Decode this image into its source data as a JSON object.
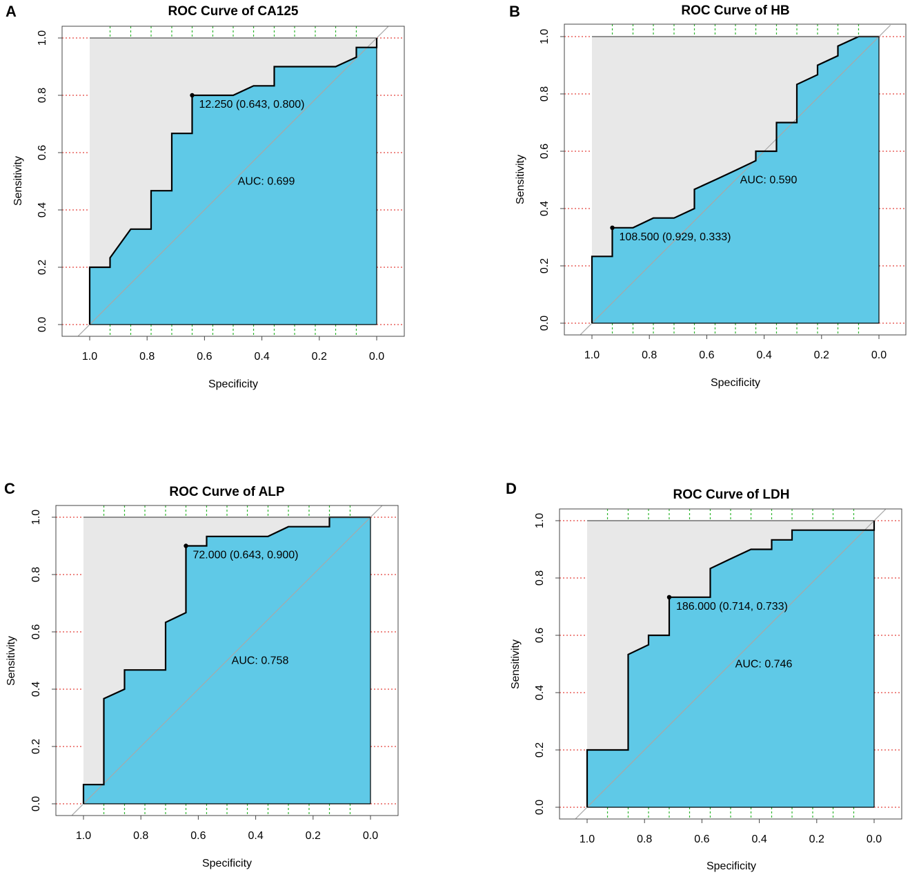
{
  "colors": {
    "fill": "#5FC9E7",
    "background": "#E8E8E8",
    "curve": "#000000",
    "diagonal": "#A8A8A8",
    "grid_y": "#E4403A",
    "grid_x": "#2DB52D",
    "axis": "#444444"
  },
  "chart_data": [
    {
      "type": "line",
      "panel_label": "A",
      "title": "ROC Curve of CA125",
      "xlabel": "Specificity",
      "ylabel": "Sensitivity",
      "xlim": [
        1.0,
        0.0
      ],
      "ylim": [
        0.0,
        1.0
      ],
      "x_ticks": [
        "1.0",
        "0.8",
        "0.6",
        "0.4",
        "0.2",
        "0.0"
      ],
      "y_ticks": [
        "0.0",
        "0.2",
        "0.4",
        "0.6",
        "0.8",
        "1.0"
      ],
      "grid_x_values": [
        0.929,
        0.857,
        0.786,
        0.714,
        0.643,
        0.571,
        0.5,
        0.429,
        0.357,
        0.286,
        0.214,
        0.143,
        0.071
      ],
      "grid_y_values": [
        0.0,
        0.2,
        0.4,
        0.6,
        0.8,
        1.0
      ],
      "curve": [
        [
          1.0,
          0.0
        ],
        [
          1.0,
          0.2
        ],
        [
          0.929,
          0.2
        ],
        [
          0.929,
          0.233
        ],
        [
          0.857,
          0.333
        ],
        [
          0.786,
          0.333
        ],
        [
          0.786,
          0.467
        ],
        [
          0.714,
          0.467
        ],
        [
          0.714,
          0.667
        ],
        [
          0.643,
          0.667
        ],
        [
          0.643,
          0.8
        ],
        [
          0.5,
          0.8
        ],
        [
          0.429,
          0.833
        ],
        [
          0.357,
          0.833
        ],
        [
          0.357,
          0.9
        ],
        [
          0.143,
          0.9
        ],
        [
          0.071,
          0.933
        ],
        [
          0.071,
          0.967
        ],
        [
          0.0,
          0.967
        ],
        [
          0.0,
          1.0
        ]
      ],
      "best_point": {
        "x": 0.643,
        "y": 0.8
      },
      "best_point_label": "12.250 (0.643, 0.800)",
      "auc": 0.699,
      "auc_label": "AUC: 0.699"
    },
    {
      "type": "line",
      "panel_label": "B",
      "title": "ROC Curve of HB",
      "xlabel": "Specificity",
      "ylabel": "Sensitivity",
      "xlim": [
        1.0,
        0.0
      ],
      "ylim": [
        0.0,
        1.0
      ],
      "x_ticks": [
        "1.0",
        "0.8",
        "0.6",
        "0.4",
        "0.2",
        "0.0"
      ],
      "y_ticks": [
        "0.0",
        "0.2",
        "0.4",
        "0.6",
        "0.8",
        "1.0"
      ],
      "grid_x_values": [
        0.929,
        0.857,
        0.786,
        0.714,
        0.643,
        0.571,
        0.5,
        0.429,
        0.357,
        0.286,
        0.214,
        0.143,
        0.071
      ],
      "grid_y_values": [
        0.0,
        0.2,
        0.4,
        0.6,
        0.8,
        1.0
      ],
      "curve": [
        [
          1.0,
          0.0
        ],
        [
          1.0,
          0.233
        ],
        [
          0.929,
          0.233
        ],
        [
          0.929,
          0.333
        ],
        [
          0.857,
          0.333
        ],
        [
          0.786,
          0.367
        ],
        [
          0.714,
          0.367
        ],
        [
          0.643,
          0.4
        ],
        [
          0.643,
          0.467
        ],
        [
          0.571,
          0.5
        ],
        [
          0.5,
          0.533
        ],
        [
          0.429,
          0.567
        ],
        [
          0.429,
          0.6
        ],
        [
          0.357,
          0.6
        ],
        [
          0.357,
          0.7
        ],
        [
          0.286,
          0.7
        ],
        [
          0.286,
          0.833
        ],
        [
          0.214,
          0.867
        ],
        [
          0.214,
          0.9
        ],
        [
          0.143,
          0.933
        ],
        [
          0.143,
          0.967
        ],
        [
          0.071,
          1.0
        ],
        [
          0.0,
          1.0
        ]
      ],
      "best_point": {
        "x": 0.929,
        "y": 0.333
      },
      "best_point_label": "108.500 (0.929, 0.333)",
      "auc": 0.59,
      "auc_label": "AUC: 0.590"
    },
    {
      "type": "line",
      "panel_label": "C",
      "title": "ROC Curve of ALP",
      "xlabel": "Specificity",
      "ylabel": "Sensitivity",
      "xlim": [
        1.0,
        0.0
      ],
      "ylim": [
        0.0,
        1.0
      ],
      "x_ticks": [
        "1.0",
        "0.8",
        "0.6",
        "0.4",
        "0.2",
        "0.0"
      ],
      "y_ticks": [
        "0.0",
        "0.2",
        "0.4",
        "0.6",
        "0.8",
        "1.0"
      ],
      "grid_x_values": [
        0.929,
        0.857,
        0.786,
        0.714,
        0.643,
        0.571,
        0.5,
        0.429,
        0.357,
        0.286,
        0.214,
        0.143,
        0.071
      ],
      "grid_y_values": [
        0.0,
        0.2,
        0.4,
        0.6,
        0.8,
        1.0
      ],
      "curve": [
        [
          1.0,
          0.0
        ],
        [
          1.0,
          0.067
        ],
        [
          0.929,
          0.067
        ],
        [
          0.929,
          0.367
        ],
        [
          0.857,
          0.4
        ],
        [
          0.857,
          0.467
        ],
        [
          0.714,
          0.467
        ],
        [
          0.714,
          0.633
        ],
        [
          0.643,
          0.667
        ],
        [
          0.643,
          0.9
        ],
        [
          0.571,
          0.9
        ],
        [
          0.571,
          0.933
        ],
        [
          0.357,
          0.933
        ],
        [
          0.286,
          0.967
        ],
        [
          0.143,
          0.967
        ],
        [
          0.143,
          1.0
        ],
        [
          0.0,
          1.0
        ]
      ],
      "best_point": {
        "x": 0.643,
        "y": 0.9
      },
      "best_point_label": "72.000 (0.643, 0.900)",
      "auc": 0.758,
      "auc_label": "AUC: 0.758"
    },
    {
      "type": "line",
      "panel_label": "D",
      "title": "ROC Curve of LDH",
      "xlabel": "Specificity",
      "ylabel": "Sensitivity",
      "xlim": [
        1.0,
        0.0
      ],
      "ylim": [
        0.0,
        1.0
      ],
      "x_ticks": [
        "1.0",
        "0.8",
        "0.6",
        "0.4",
        "0.2",
        "0.0"
      ],
      "y_ticks": [
        "0.0",
        "0.2",
        "0.4",
        "0.6",
        "0.8",
        "1.0"
      ],
      "grid_x_values": [
        0.929,
        0.857,
        0.786,
        0.714,
        0.643,
        0.571,
        0.5,
        0.429,
        0.357,
        0.286,
        0.214,
        0.143,
        0.071
      ],
      "grid_y_values": [
        0.0,
        0.2,
        0.4,
        0.6,
        0.8,
        1.0
      ],
      "curve": [
        [
          1.0,
          0.0
        ],
        [
          1.0,
          0.2
        ],
        [
          0.857,
          0.2
        ],
        [
          0.857,
          0.533
        ],
        [
          0.786,
          0.567
        ],
        [
          0.786,
          0.6
        ],
        [
          0.714,
          0.6
        ],
        [
          0.714,
          0.733
        ],
        [
          0.571,
          0.733
        ],
        [
          0.571,
          0.833
        ],
        [
          0.5,
          0.867
        ],
        [
          0.429,
          0.9
        ],
        [
          0.357,
          0.9
        ],
        [
          0.357,
          0.933
        ],
        [
          0.286,
          0.933
        ],
        [
          0.286,
          0.967
        ],
        [
          0.0,
          0.967
        ],
        [
          0.0,
          1.0
        ]
      ],
      "best_point": {
        "x": 0.714,
        "y": 0.733
      },
      "best_point_label": "186.000 (0.714, 0.733)",
      "auc": 0.746,
      "auc_label": "AUC: 0.746"
    }
  ]
}
